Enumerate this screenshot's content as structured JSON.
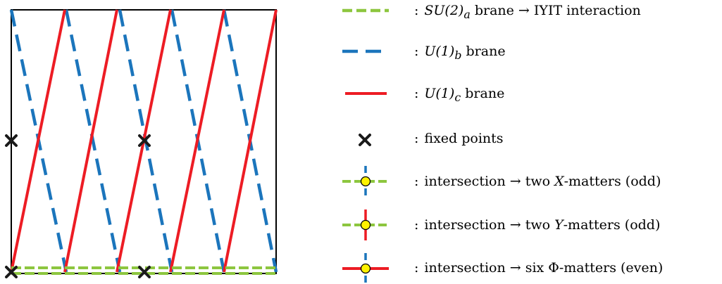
{
  "colors": {
    "su2a": "#8dc63f",
    "u1b": "#1b75bc",
    "u1c": "#ed1c24",
    "fixed": "#1a1a1a",
    "intersection_fill": "#fff200",
    "frame": "#000000"
  },
  "legend": [
    {
      "id": "su2a",
      "symbol": "green-dashed-line",
      "separator": ":",
      "prefix": "",
      "math": "SU(2)",
      "sub": "a",
      "suffix": " brane → IYIT interaction"
    },
    {
      "id": "u1b",
      "symbol": "blue-dashed-line",
      "separator": ":",
      "prefix": "",
      "math": "U(1)",
      "sub": "b",
      "suffix": " brane"
    },
    {
      "id": "u1c",
      "symbol": "red-solid-line",
      "separator": ":",
      "prefix": "",
      "math": "U(1)",
      "sub": "c",
      "suffix": " brane"
    },
    {
      "id": "fixed",
      "symbol": "black-cross",
      "separator": ":",
      "prefix": "fixed points",
      "math": "",
      "sub": "",
      "suffix": ""
    },
    {
      "id": "x-int",
      "symbol": "green-blue-intersection",
      "separator": ":",
      "prefix": "intersection → two ",
      "math": "X",
      "sub": "",
      "suffix": "-matters (odd)"
    },
    {
      "id": "y-int",
      "symbol": "green-red-intersection",
      "separator": ":",
      "prefix": "intersection → two ",
      "math": "Y",
      "sub": "",
      "suffix": "-matters (odd)"
    },
    {
      "id": "phi-int",
      "symbol": "red-blue-intersection",
      "separator": ":",
      "prefix": "intersection → six Φ-matters (even)",
      "math": "",
      "sub": "",
      "suffix": ""
    }
  ]
}
